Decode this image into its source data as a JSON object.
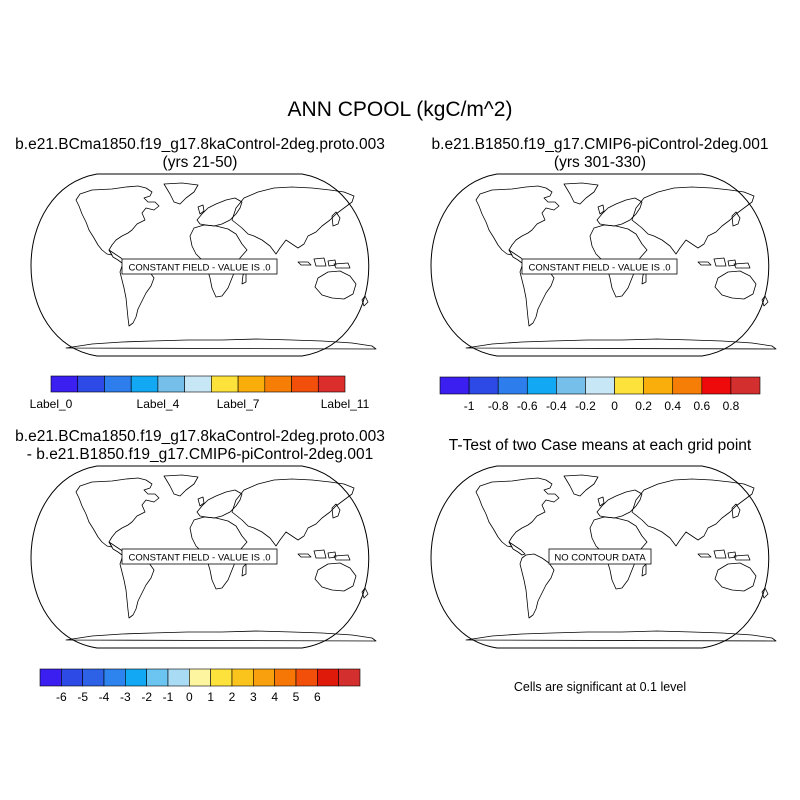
{
  "title": "ANN CPOOL (kgC/m^2)",
  "panels": [
    {
      "id": "p1",
      "title_lines": [
        "b.e21.BCma1850.f19_g17.8kaControl-2deg.proto.003",
        "(yrs 21-50)"
      ],
      "message": "CONSTANT FIELD - VALUE IS .0"
    },
    {
      "id": "p2",
      "title_lines": [
        "b.e21.B1850.f19_g17.CMIP6-piControl-2deg.001",
        "(yrs 301-330)"
      ],
      "message": "CONSTANT FIELD - VALUE IS .0"
    },
    {
      "id": "p3",
      "title_lines": [
        "b.e21.BCma1850.f19_g17.8kaControl-2deg.proto.003",
        "- b.e21.B1850.f19_g17.CMIP6-piControl-2deg.001"
      ],
      "message": "CONSTANT FIELD - VALUE IS .0"
    },
    {
      "id": "p4",
      "title_lines": [
        "T-Test of two Case means at each grid point"
      ],
      "message": "NO CONTOUR DATA"
    }
  ],
  "colorbars": [
    {
      "id": "cb1",
      "colors": [
        "#3b1ef0",
        "#2e4ae6",
        "#2e7ded",
        "#12a8f4",
        "#76bfea",
        "#c7e6f6",
        "#fde23b",
        "#faae0c",
        "#f77e06",
        "#f24f0a",
        "#dc2d2d"
      ],
      "labels": [
        {
          "text": "Label_0",
          "boundary": 0
        },
        {
          "text": "Label_4",
          "boundary": 4
        },
        {
          "text": "Label_7",
          "boundary": 7
        },
        {
          "text": "Label_11",
          "boundary": 11
        }
      ]
    },
    {
      "id": "cb2",
      "colors": [
        "#3b1ef0",
        "#2e4ae6",
        "#2e7ded",
        "#12a8f4",
        "#76bfea",
        "#c7e6f6",
        "#fde23b",
        "#faae0c",
        "#f77e06",
        "#ee0a0a",
        "#d32f2f"
      ],
      "labels": [
        {
          "text": "-1",
          "boundary": 1
        },
        {
          "text": "-0.8",
          "boundary": 2
        },
        {
          "text": "-0.6",
          "boundary": 3
        },
        {
          "text": "-0.4",
          "boundary": 4
        },
        {
          "text": "-0.2",
          "boundary": 5
        },
        {
          "text": "0",
          "boundary": 6
        },
        {
          "text": "0.2",
          "boundary": 7
        },
        {
          "text": "0.4",
          "boundary": 8
        },
        {
          "text": "0.6",
          "boundary": 9
        },
        {
          "text": "0.8",
          "boundary": 10
        }
      ]
    },
    {
      "id": "cb3",
      "colors": [
        "#3b1ef0",
        "#2e4ae6",
        "#2e62e6",
        "#2e84ee",
        "#12a8f4",
        "#6cc4f0",
        "#a9dbf5",
        "#fdf5a0",
        "#fde23b",
        "#fbc41c",
        "#f9a00e",
        "#f77706",
        "#f24f0a",
        "#e01a0a",
        "#d32f2f"
      ],
      "labels": [
        {
          "text": "-6",
          "boundary": 1
        },
        {
          "text": "-5",
          "boundary": 2
        },
        {
          "text": "-4",
          "boundary": 3
        },
        {
          "text": "-3",
          "boundary": 4
        },
        {
          "text": "-2",
          "boundary": 5
        },
        {
          "text": "-1",
          "boundary": 6
        },
        {
          "text": "0",
          "boundary": 7
        },
        {
          "text": "1",
          "boundary": 8
        },
        {
          "text": "2",
          "boundary": 9
        },
        {
          "text": "3",
          "boundary": 10
        },
        {
          "text": "4",
          "boundary": 11
        },
        {
          "text": "5",
          "boundary": 12
        },
        {
          "text": "6",
          "boundary": 13
        }
      ]
    }
  ],
  "significance_note": "Cells are significant at 0.1 level"
}
